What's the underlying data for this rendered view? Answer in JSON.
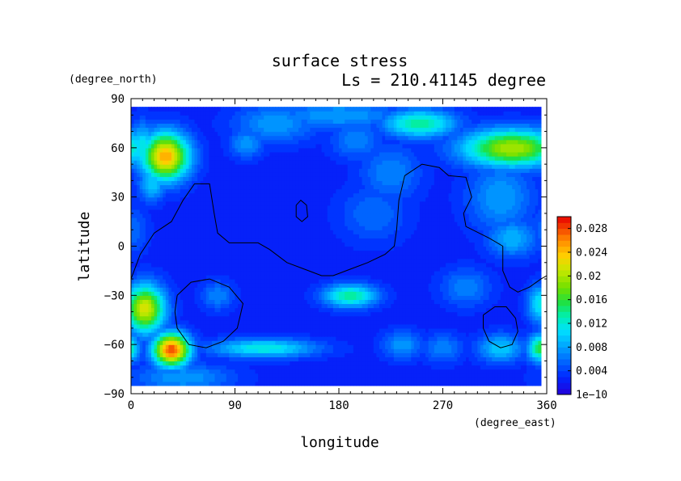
{
  "chart_data": {
    "type": "heatmap",
    "title": "surface stress",
    "subtitle": "Ls = 210.41145 degree",
    "xlabel": "longitude",
    "ylabel": "latitude",
    "x_unit": "(degree_east)",
    "y_unit": "(degree_north)",
    "xlim": [
      0,
      360
    ],
    "ylim": [
      -90,
      90
    ],
    "data_lat_range": [
      -85,
      85
    ],
    "data_lon_range": [
      0,
      355
    ],
    "xticks": [
      0,
      90,
      180,
      270,
      360
    ],
    "xticklabels": [
      "0",
      "90",
      "180",
      "270",
      "360"
    ],
    "yticks": [
      90,
      60,
      30,
      0,
      -30,
      -60,
      -90
    ],
    "yticklabels": [
      "90",
      "60",
      "30",
      "0",
      "−30",
      "−60",
      "−90"
    ],
    "colorbar": {
      "min": 0,
      "max": 0.03,
      "levels": 30,
      "ticks": [
        0,
        0.004,
        0.008,
        0.012,
        0.016,
        0.02,
        0.024,
        0.028
      ],
      "ticklabels": [
        "1e−10",
        "0.004",
        "0.008",
        "0.012",
        "0.016",
        "0.02",
        "0.024",
        "0.028"
      ]
    },
    "background_value": 0.0025,
    "features": [
      {
        "lon": 30,
        "lat": 55,
        "value": 0.025,
        "dlon": 14,
        "dlat": 10
      },
      {
        "lon": 10,
        "lat": 60,
        "value": 0.012,
        "dlon": 8,
        "dlat": 10
      },
      {
        "lon": 18,
        "lat": 38,
        "value": 0.01,
        "dlon": 8,
        "dlat": 7
      },
      {
        "lon": 330,
        "lat": 60,
        "value": 0.02,
        "dlon": 30,
        "dlat": 8
      },
      {
        "lon": 250,
        "lat": 75,
        "value": 0.014,
        "dlon": 22,
        "dlat": 6
      },
      {
        "lon": 125,
        "lat": 75,
        "value": 0.008,
        "dlon": 25,
        "dlat": 8
      },
      {
        "lon": 180,
        "lat": 80,
        "value": 0.008,
        "dlon": 40,
        "dlat": 6
      },
      {
        "lon": 100,
        "lat": 63,
        "value": 0.008,
        "dlon": 10,
        "dlat": 6
      },
      {
        "lon": 195,
        "lat": 65,
        "value": 0.007,
        "dlon": 15,
        "dlat": 8
      },
      {
        "lon": 320,
        "lat": 30,
        "value": 0.008,
        "dlon": 20,
        "dlat": 15
      },
      {
        "lon": 330,
        "lat": 5,
        "value": 0.009,
        "dlon": 15,
        "dlat": 8
      },
      {
        "lon": 210,
        "lat": 20,
        "value": 0.006,
        "dlon": 20,
        "dlat": 12
      },
      {
        "lon": 225,
        "lat": 45,
        "value": 0.007,
        "dlon": 18,
        "dlat": 12
      },
      {
        "lon": 12,
        "lat": -38,
        "value": 0.022,
        "dlon": 12,
        "dlat": 10
      },
      {
        "lon": 35,
        "lat": -63,
        "value": 0.028,
        "dlon": 11,
        "dlat": 7
      },
      {
        "lon": 115,
        "lat": -62,
        "value": 0.012,
        "dlon": 32,
        "dlat": 4
      },
      {
        "lon": 190,
        "lat": -30,
        "value": 0.014,
        "dlon": 16,
        "dlat": 5
      },
      {
        "lon": 235,
        "lat": -60,
        "value": 0.008,
        "dlon": 12,
        "dlat": 6
      },
      {
        "lon": 270,
        "lat": -62,
        "value": 0.007,
        "dlon": 12,
        "dlat": 6
      },
      {
        "lon": 320,
        "lat": -62,
        "value": 0.01,
        "dlon": 14,
        "dlat": 6
      },
      {
        "lon": 355,
        "lat": -62,
        "value": 0.016,
        "dlon": 8,
        "dlat": 6
      },
      {
        "lon": 355,
        "lat": -35,
        "value": 0.012,
        "dlon": 8,
        "dlat": 8
      },
      {
        "lon": 290,
        "lat": -25,
        "value": 0.007,
        "dlon": 15,
        "dlat": 8
      },
      {
        "lon": 45,
        "lat": -80,
        "value": 0.008,
        "dlon": 30,
        "dlat": 6
      },
      {
        "lon": 75,
        "lat": -30,
        "value": 0.007,
        "dlon": 10,
        "dlat": 6
      },
      {
        "lon": 0,
        "lat": 10,
        "value": 0.006,
        "dlon": 10,
        "dlat": 10
      }
    ],
    "contours": [
      [
        [
          0,
          -20
        ],
        [
          8,
          -5
        ],
        [
          20,
          8
        ],
        [
          35,
          15
        ],
        [
          45,
          28
        ],
        [
          55,
          38
        ],
        [
          68,
          38
        ],
        [
          72,
          20
        ],
        [
          75,
          8
        ],
        [
          85,
          2
        ],
        [
          100,
          2
        ],
        [
          110,
          2
        ],
        [
          120,
          -2
        ],
        [
          135,
          -10
        ],
        [
          150,
          -14
        ],
        [
          165,
          -18
        ],
        [
          175,
          -18
        ],
        [
          190,
          -14
        ],
        [
          205,
          -10
        ],
        [
          220,
          -5
        ],
        [
          228,
          0
        ],
        [
          230,
          10
        ],
        [
          232,
          28
        ],
        [
          237,
          43
        ],
        [
          252,
          50
        ],
        [
          267,
          48
        ],
        [
          275,
          43
        ],
        [
          290,
          42
        ],
        [
          295,
          30
        ],
        [
          288,
          20
        ],
        [
          290,
          12
        ],
        [
          310,
          5
        ],
        [
          322,
          0
        ],
        [
          322,
          -15
        ],
        [
          328,
          -25
        ],
        [
          335,
          -28
        ],
        [
          345,
          -25
        ],
        [
          355,
          -20
        ],
        [
          360,
          -18
        ]
      ],
      [
        [
          143,
          25
        ],
        [
          147,
          28
        ],
        [
          152,
          25
        ],
        [
          153,
          18
        ],
        [
          148,
          15
        ],
        [
          143,
          18
        ],
        [
          143,
          25
        ]
      ],
      [
        [
          40,
          -30
        ],
        [
          52,
          -22
        ],
        [
          68,
          -20
        ],
        [
          85,
          -25
        ],
        [
          97,
          -35
        ],
        [
          92,
          -50
        ],
        [
          80,
          -58
        ],
        [
          65,
          -62
        ],
        [
          50,
          -60
        ],
        [
          40,
          -50
        ],
        [
          38,
          -40
        ],
        [
          40,
          -30
        ]
      ],
      [
        [
          305,
          -42
        ],
        [
          315,
          -37
        ],
        [
          325,
          -37
        ],
        [
          333,
          -44
        ],
        [
          335,
          -52
        ],
        [
          330,
          -60
        ],
        [
          320,
          -62
        ],
        [
          310,
          -58
        ],
        [
          305,
          -50
        ],
        [
          305,
          -42
        ]
      ]
    ]
  }
}
